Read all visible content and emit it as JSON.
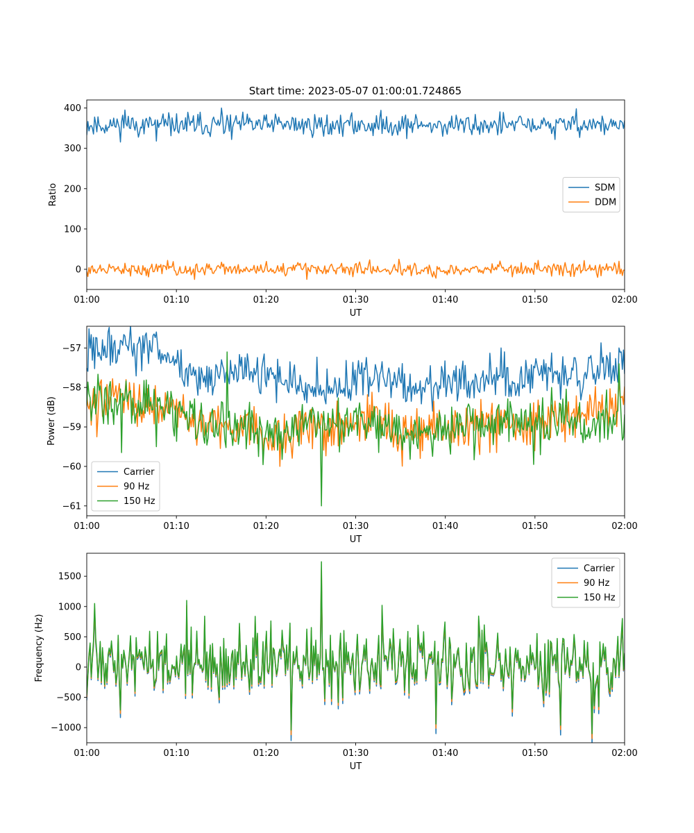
{
  "figure": {
    "title": "Start time: 2023-05-07 01:00:01.724865"
  },
  "chart_data": [
    {
      "type": "line",
      "xlabel": "UT",
      "ylabel": "Ratio",
      "x_ticks": [
        "01:00",
        "01:10",
        "01:20",
        "01:30",
        "01:40",
        "01:50",
        "02:00"
      ],
      "xlim": [
        "01:00",
        "02:00"
      ],
      "ylim": [
        -50,
        420
      ],
      "y_ticks": [
        0,
        100,
        200,
        300,
        400
      ],
      "legend": "center-right",
      "series": [
        {
          "name": "SDM",
          "color": "#1f77b4",
          "mean": 358,
          "noise": 14,
          "spikes": [
            [
              0.07,
              395
            ],
            [
              0.13,
              318
            ],
            [
              0.25,
              400
            ],
            [
              0.27,
              322
            ],
            [
              0.35,
              385
            ],
            [
              0.44,
              330
            ],
            [
              0.67,
              335
            ],
            [
              0.91,
              398
            ],
            [
              0.87,
              322
            ]
          ]
        },
        {
          "name": "DDM",
          "color": "#ff7f0e",
          "mean": 0,
          "noise": 8,
          "spikes": [
            [
              0.15,
              22
            ],
            [
              0.2,
              -25
            ],
            [
              0.41,
              -25
            ],
            [
              0.58,
              25
            ],
            [
              0.65,
              -22
            ],
            [
              0.84,
              22
            ],
            [
              0.95,
              -20
            ]
          ]
        }
      ]
    },
    {
      "type": "line",
      "xlabel": "UT",
      "ylabel": "Power (dB)",
      "x_ticks": [
        "01:00",
        "01:10",
        "01:20",
        "01:30",
        "01:40",
        "01:50",
        "02:00"
      ],
      "xlim": [
        "01:00",
        "02:00"
      ],
      "ylim": [
        -61.25,
        -56.45
      ],
      "y_ticks": [
        -61,
        -60,
        -59,
        -58,
        -57
      ],
      "legend": "lower-left",
      "series": [
        {
          "name": "Carrier",
          "color": "#1f77b4",
          "profile": [
            [
              0,
              -57.1
            ],
            [
              0.13,
              -57.0
            ],
            [
              0.2,
              -57.8
            ],
            [
              0.3,
              -57.6
            ],
            [
              0.45,
              -58.1
            ],
            [
              0.52,
              -57.7
            ],
            [
              0.6,
              -58.0
            ],
            [
              0.7,
              -57.9
            ],
            [
              0.85,
              -57.7
            ],
            [
              1,
              -57.5
            ]
          ],
          "noise": 0.28,
          "spikes": [
            [
              0.04,
              -56.6
            ],
            [
              0.07,
              -56.7
            ],
            [
              0.77,
              -57.0
            ],
            [
              0.99,
              -57.0
            ]
          ]
        },
        {
          "name": "90 Hz",
          "color": "#ff7f0e",
          "profile": [
            [
              0,
              -58.1
            ],
            [
              0.14,
              -58.6
            ],
            [
              0.25,
              -59.1
            ],
            [
              0.35,
              -59.2
            ],
            [
              0.5,
              -58.9
            ],
            [
              0.6,
              -59.1
            ],
            [
              0.7,
              -59.0
            ],
            [
              0.85,
              -58.9
            ],
            [
              1,
              -58.5
            ]
          ],
          "noise": 0.3,
          "spikes": [
            [
              0.018,
              -59.25
            ],
            [
              0.36,
              -60.0
            ],
            [
              0.73,
              -59.7
            ],
            [
              0.99,
              -57.8
            ]
          ]
        },
        {
          "name": "150 Hz",
          "color": "#2ca02c",
          "profile": [
            [
              0,
              -58.2
            ],
            [
              0.14,
              -58.5
            ],
            [
              0.25,
              -58.9
            ],
            [
              0.35,
              -59.2
            ],
            [
              0.5,
              -58.9
            ],
            [
              0.6,
              -59.2
            ],
            [
              0.7,
              -59.0
            ],
            [
              0.85,
              -58.8
            ],
            [
              1,
              -58.9
            ]
          ],
          "noise": 0.32,
          "spikes": [
            [
              0.065,
              -59.65
            ],
            [
              0.13,
              -59.5
            ],
            [
              0.26,
              -57.1
            ],
            [
              0.437,
              -61.0
            ],
            [
              0.83,
              -59.95
            ],
            [
              0.99,
              -57.4
            ]
          ]
        }
      ]
    },
    {
      "type": "line",
      "xlabel": "UT",
      "ylabel": "Frequency (Hz)",
      "x_ticks": [
        "01:00",
        "01:10",
        "01:20",
        "01:30",
        "01:40",
        "01:50",
        "02:00"
      ],
      "xlim": [
        "01:00",
        "02:00"
      ],
      "ylim": [
        -1250,
        1880
      ],
      "y_ticks": [
        -1000,
        -500,
        0,
        500,
        1000,
        1500
      ],
      "legend": "upper-right",
      "series": [
        {
          "name": "Carrier",
          "color": "#1f77b4",
          "offset": -90
        },
        {
          "name": "90 Hz",
          "color": "#ff7f0e",
          "offset": -40
        },
        {
          "name": "150 Hz",
          "color": "#2ca02c",
          "offset": 0
        }
      ],
      "base": {
        "mean": 60,
        "noise": 300,
        "spikes": [
          [
            0.014,
            1050
          ],
          [
            0.185,
            1100
          ],
          [
            0.437,
            1740
          ],
          [
            0.38,
            -1040
          ],
          [
            0.65,
            -940
          ],
          [
            0.88,
            -960
          ],
          [
            0.94,
            -1100
          ],
          [
            0.55,
            1020
          ]
        ]
      }
    }
  ]
}
